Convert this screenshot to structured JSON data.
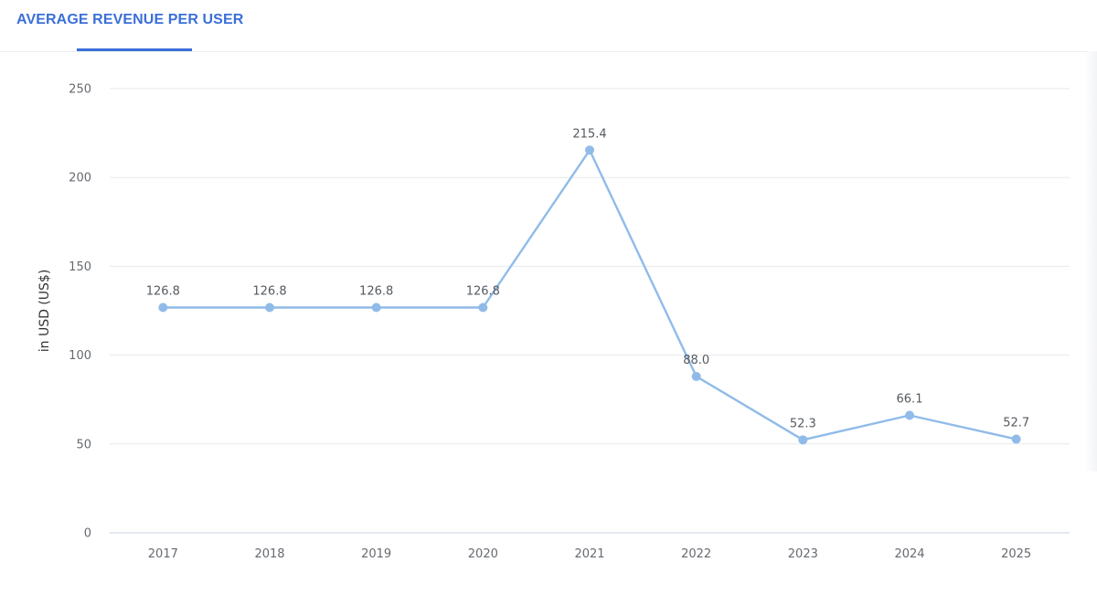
{
  "tabs": [
    {
      "label": "AVERAGE REVENUE PER USER",
      "active": true
    }
  ],
  "colors": {
    "accent": "#3b6fd8",
    "series": "#90bbe9",
    "grid": "#e6e9ee"
  },
  "chart_data": {
    "type": "line",
    "title": "",
    "xlabel": "",
    "ylabel": "in USD (US$)",
    "categories": [
      "2017",
      "2018",
      "2019",
      "2020",
      "2021",
      "2022",
      "2023",
      "2024",
      "2025"
    ],
    "series": [
      {
        "values": [
          126.8,
          126.8,
          126.8,
          126.8,
          215.4,
          88.0,
          52.3,
          66.1,
          52.7
        ],
        "labels": [
          "126.8",
          "126.8",
          "126.8",
          "126.8",
          "215.4",
          "88.0",
          "52.3",
          "66.1",
          "52.7"
        ]
      }
    ],
    "ylim": [
      0,
      250
    ],
    "yticks": [
      "0",
      "50",
      "100",
      "150",
      "200",
      "250"
    ],
    "grid": true,
    "legend": "none"
  }
}
